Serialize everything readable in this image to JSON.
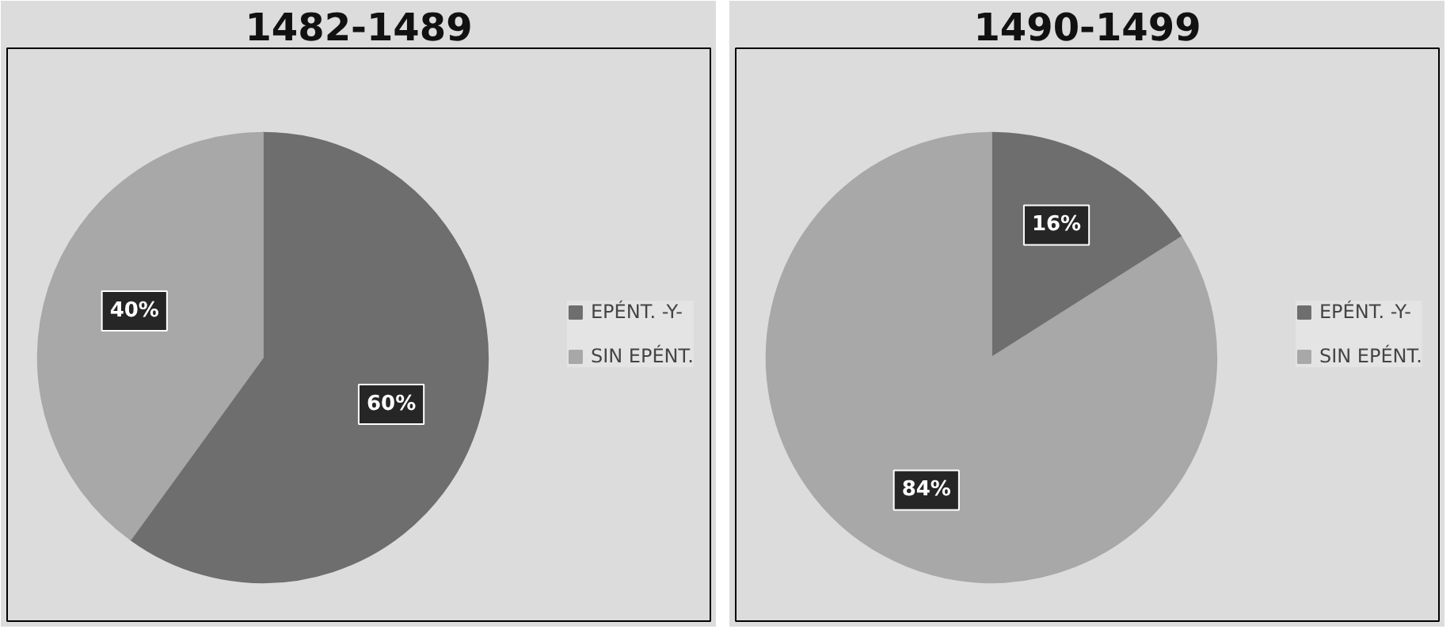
{
  "chart_data": [
    {
      "type": "pie",
      "title": "1482-1489",
      "categories": [
        "EPÉNT. -Y-",
        "SIN EPÉNT."
      ],
      "values": [
        60,
        40
      ],
      "colors": [
        "#6e6e6e",
        "#a8a8a8"
      ],
      "value_labels": [
        "60%",
        "40%"
      ],
      "legend": "right"
    },
    {
      "type": "pie",
      "title": "1490-1499",
      "categories": [
        "EPÉNT. -Y-",
        "SIN EPÉNT."
      ],
      "values": [
        16,
        84
      ],
      "colors": [
        "#6e6e6e",
        "#a8a8a8"
      ],
      "value_labels": [
        "16%",
        "84%"
      ],
      "legend": "right"
    }
  ]
}
